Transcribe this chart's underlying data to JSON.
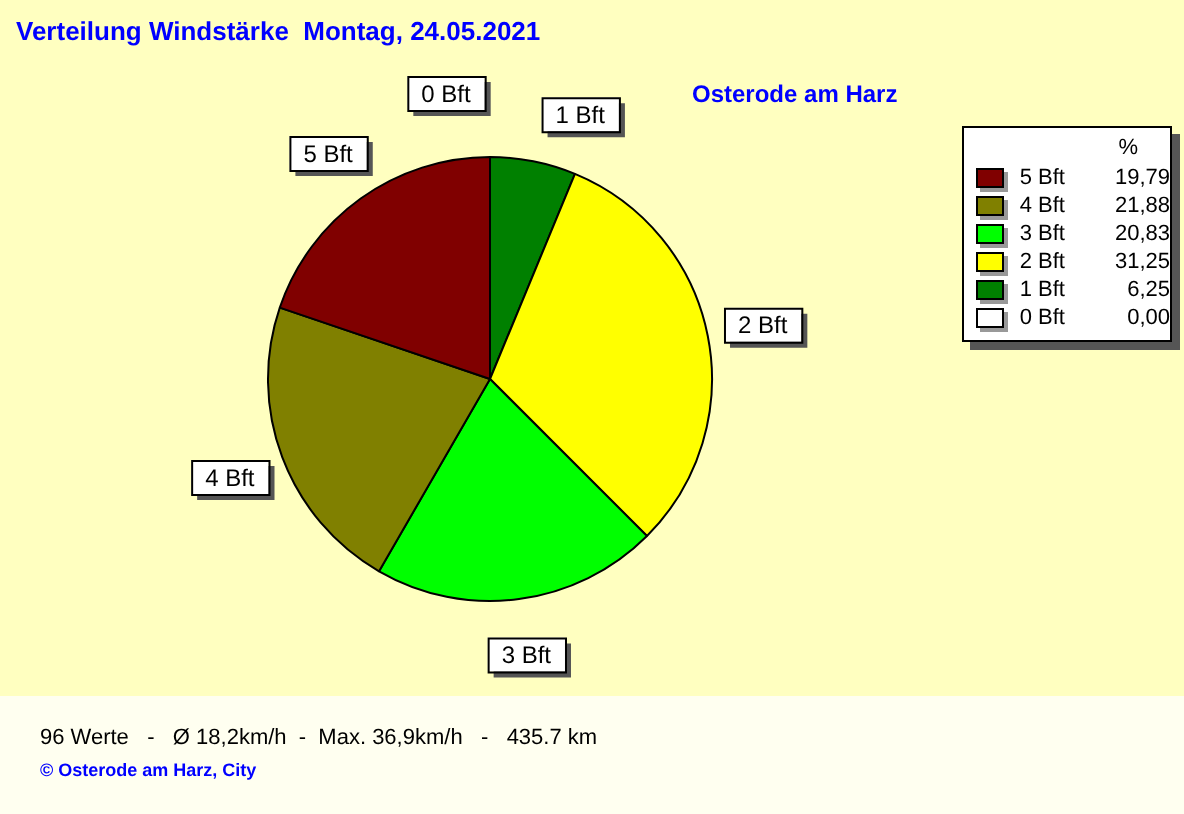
{
  "chart_data": {
    "type": "pie",
    "title": "Verteilung Windstärke  Montag, 24.05.2021",
    "subtitle": "Osterode am Harz",
    "legend_title": "%",
    "categories": [
      "0 Bft",
      "1 Bft",
      "2 Bft",
      "3 Bft",
      "4 Bft",
      "5 Bft"
    ],
    "values": [
      0,
      6.25,
      31.25,
      20.83,
      21.88,
      19.79
    ],
    "value_labels": [
      "0,00",
      "6,25",
      "31,25",
      "20,83",
      "21,88",
      "19,79"
    ],
    "colors": [
      "#ffffff",
      "#008000",
      "#ffff00",
      "#00ff00",
      "#808000",
      "#800000"
    ],
    "legend": "top right",
    "annotations": [
      "96 Werte   -   Ø 18,2km/h  -  Max. 36,9km/h   -   435.7 km",
      "© Osterode am Harz, City"
    ]
  }
}
